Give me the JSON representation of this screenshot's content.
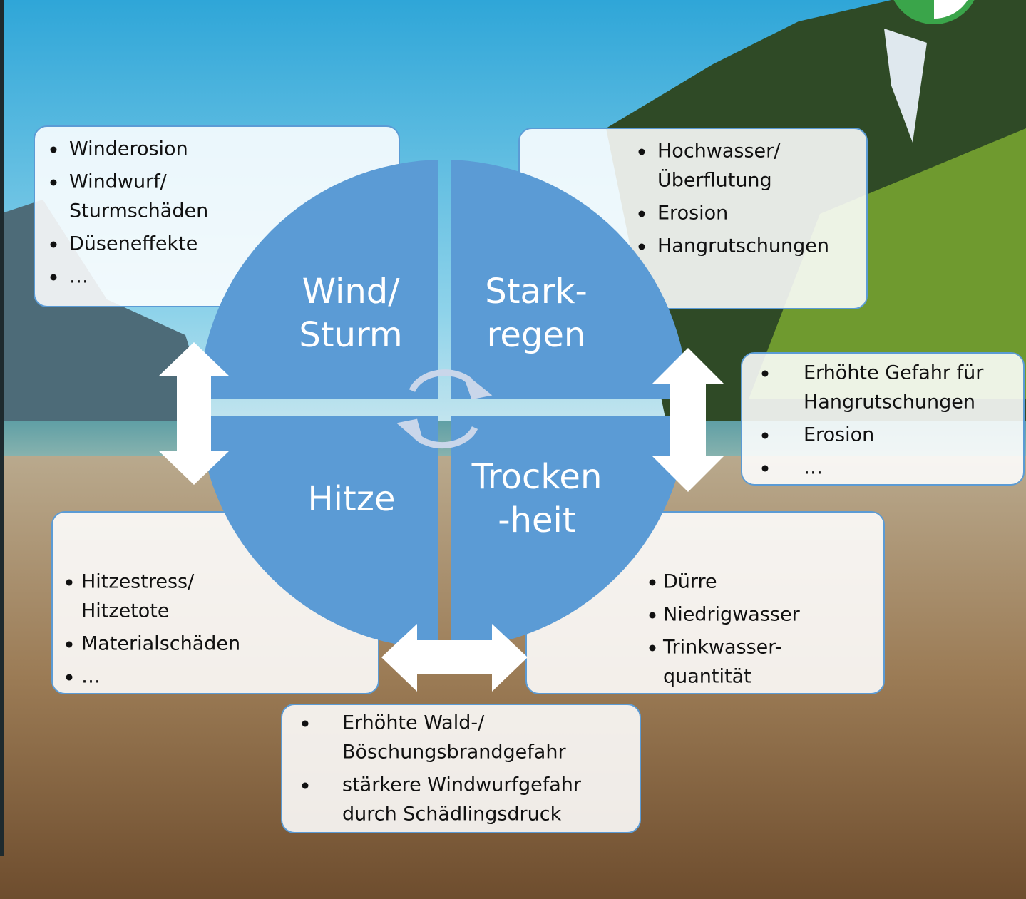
{
  "quadrants": [
    {
      "lines": [
        "Wind/",
        "Sturm"
      ]
    },
    {
      "lines": [
        "Stark-",
        "regen"
      ]
    },
    {
      "lines": [
        "Hitze"
      ]
    },
    {
      "lines": [
        "Trocken",
        "-heit"
      ]
    }
  ],
  "boxes": [
    {
      "items": [
        [
          "Winderosion"
        ],
        [
          "Windwurf/",
          "Sturmschäden"
        ],
        [
          "Düseneffekte"
        ],
        [
          "…"
        ]
      ]
    },
    {
      "items": [
        [
          "Hochwasser/",
          "Überflutung"
        ],
        [
          "Erosion"
        ],
        [
          "Hangrutschungen"
        ]
      ]
    },
    {
      "items": [
        [
          "Erhöhte Gefahr für",
          "Hangrutschungen"
        ],
        [
          "Erosion"
        ],
        [
          "…"
        ]
      ]
    },
    {
      "items": [
        [
          "Hitzestress/",
          "Hitzetote"
        ],
        [
          "Materialschäden"
        ],
        [
          "…"
        ]
      ]
    },
    {
      "items": [
        [
          "Dürre"
        ],
        [
          "Niedrigwasser"
        ],
        [
          "Trinkwasser-",
          "quantität"
        ]
      ]
    },
    {
      "items": [
        [
          "Erhöhte Wald-/",
          "Böschungsbrandgefahr"
        ],
        [
          "stärkere Windwurfgefahr",
          "durch Schädlingsdruck"
        ]
      ]
    }
  ]
}
